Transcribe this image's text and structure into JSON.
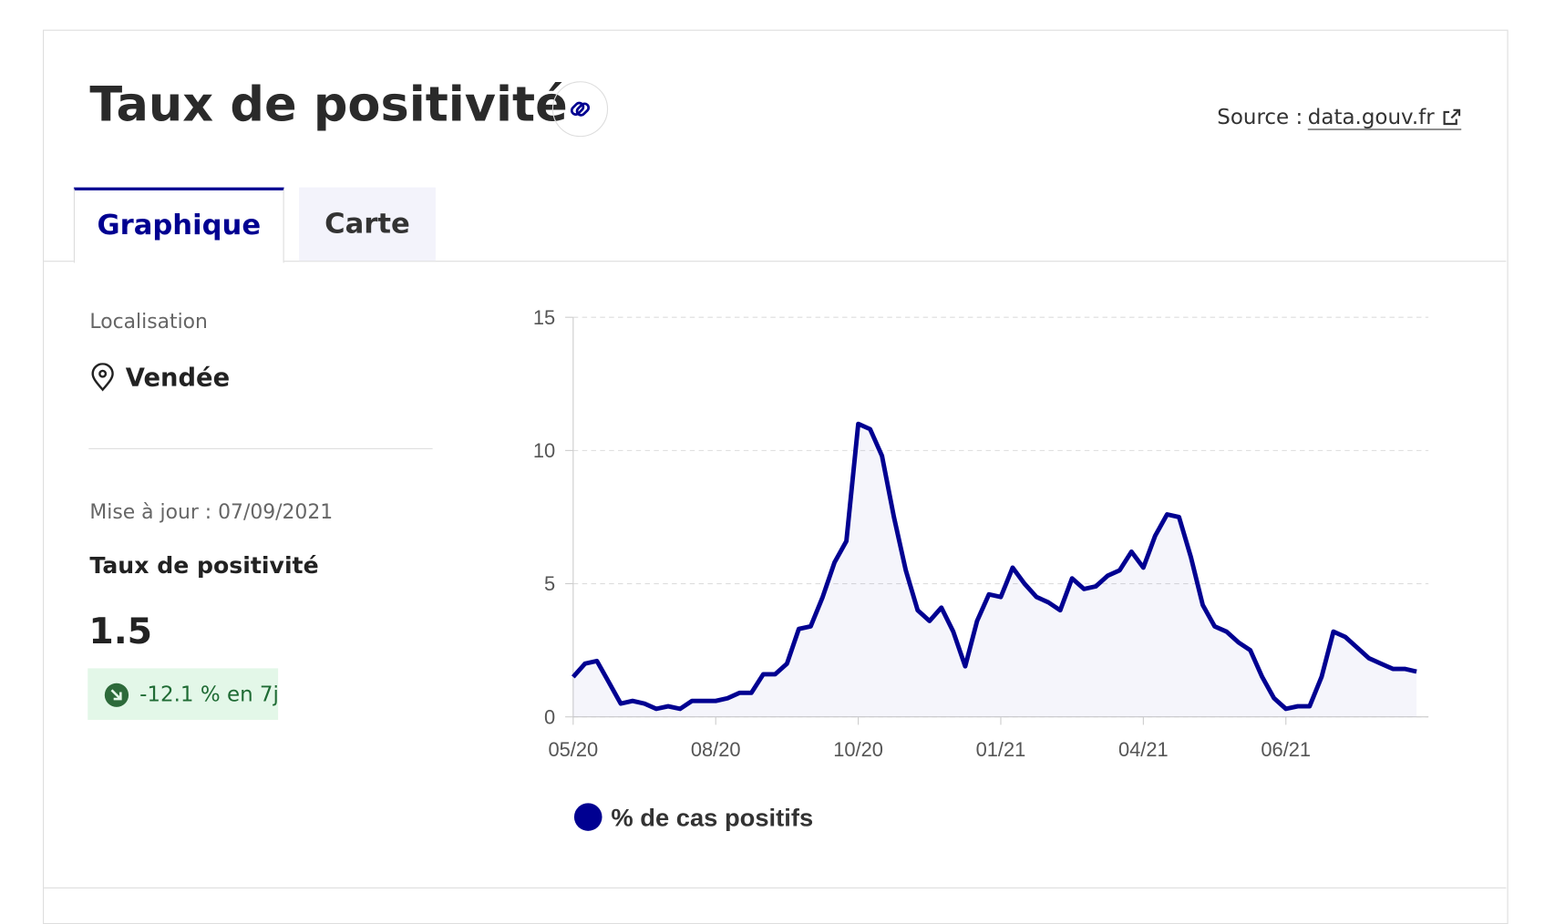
{
  "header": {
    "title": "Taux de positivité",
    "source_label": "Source :",
    "source_link": "data.gouv.fr"
  },
  "tabs": [
    "Graphique",
    "Carte"
  ],
  "sidebar": {
    "location_label": "Localisation",
    "location": "Vendée",
    "updated": "Mise à jour : 07/09/2021",
    "indicator": "Taux de positivité",
    "value": "1.5",
    "change": "-12.1 % en 7j"
  },
  "chart_data": {
    "type": "line",
    "categories": [
      "05/20",
      null,
      null,
      null,
      null,
      null,
      null,
      null,
      null,
      null,
      null,
      null,
      "08/20",
      null,
      null,
      null,
      null,
      null,
      null,
      null,
      null,
      null,
      null,
      null,
      "10/20",
      null,
      null,
      null,
      null,
      null,
      null,
      null,
      null,
      null,
      null,
      null,
      "01/21",
      null,
      null,
      null,
      null,
      null,
      null,
      null,
      null,
      null,
      null,
      null,
      "04/21",
      null,
      null,
      null,
      null,
      null,
      null,
      null,
      null,
      null,
      null,
      null,
      "06/21",
      null,
      null,
      null,
      null,
      null,
      null,
      null,
      null,
      null,
      null,
      null
    ],
    "series": [
      {
        "name": "% de cas positifs",
        "color": "#000091",
        "values": [
          1.5,
          2.0,
          2.1,
          1.3,
          0.5,
          0.6,
          0.5,
          0.3,
          0.4,
          0.3,
          0.6,
          0.6,
          0.6,
          0.7,
          0.9,
          0.9,
          1.6,
          1.6,
          2.0,
          3.3,
          3.4,
          4.5,
          5.8,
          6.6,
          11.0,
          10.8,
          9.8,
          7.5,
          5.5,
          4.0,
          3.6,
          4.1,
          3.2,
          1.9,
          3.6,
          4.6,
          4.5,
          5.6,
          5.0,
          4.5,
          4.3,
          4.0,
          5.2,
          4.8,
          4.9,
          5.3,
          5.5,
          6.2,
          5.6,
          6.8,
          7.6,
          7.5,
          6.0,
          4.2,
          3.4,
          3.2,
          2.8,
          2.5,
          1.5,
          0.7,
          0.3,
          0.4,
          0.4,
          1.5,
          3.2,
          3.0,
          2.6,
          2.2,
          2.0,
          1.8,
          1.8,
          1.7
        ]
      }
    ],
    "ylim": [
      0,
      15
    ],
    "yticks": [
      0,
      5,
      10,
      15
    ],
    "grid": true
  }
}
